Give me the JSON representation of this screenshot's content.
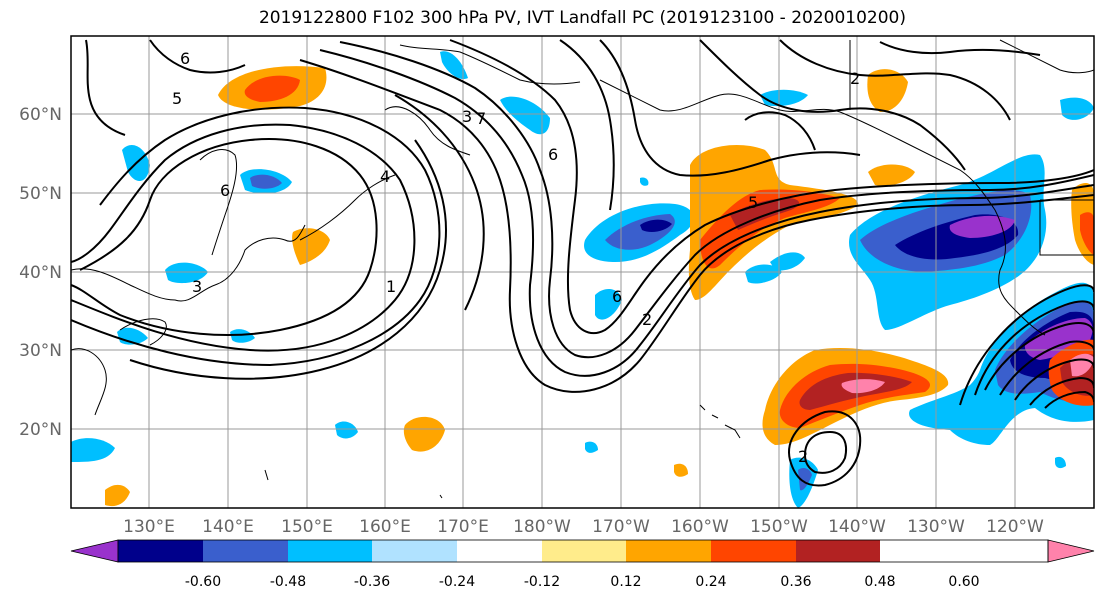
{
  "title": "2019122800 F102 300 hPa PV, IVT Landfall PC (2019123100 - 2020010200)",
  "lat_labels": [
    "20°N",
    "30°N",
    "40°N",
    "50°N",
    "60°N"
  ],
  "lon_labels": [
    "130°E",
    "140°E",
    "150°E",
    "160°E",
    "170°E",
    "180°W",
    "170°W",
    "160°W",
    "150°W",
    "140°W",
    "130°W",
    "120°W"
  ],
  "colorbar": {
    "colors": [
      "#9932cc",
      "#00008b",
      "#3a5fcd",
      "#00bfff",
      "#b0e2ff",
      "#ffffff",
      "#ffec8b",
      "#ffa500",
      "#ff4500",
      "#b22222",
      "#ff82ab"
    ],
    "tick_labels": [
      "-0.60",
      "-0.48",
      "-0.36",
      "-0.24",
      "-0.12",
      "0.12",
      "0.24",
      "0.36",
      "0.48",
      "0.60"
    ]
  },
  "contour_labels": [
    "6",
    "5",
    "6",
    "4",
    "3",
    "7",
    "6",
    "1",
    "2",
    "5",
    "6",
    "2",
    "2",
    "3"
  ]
}
